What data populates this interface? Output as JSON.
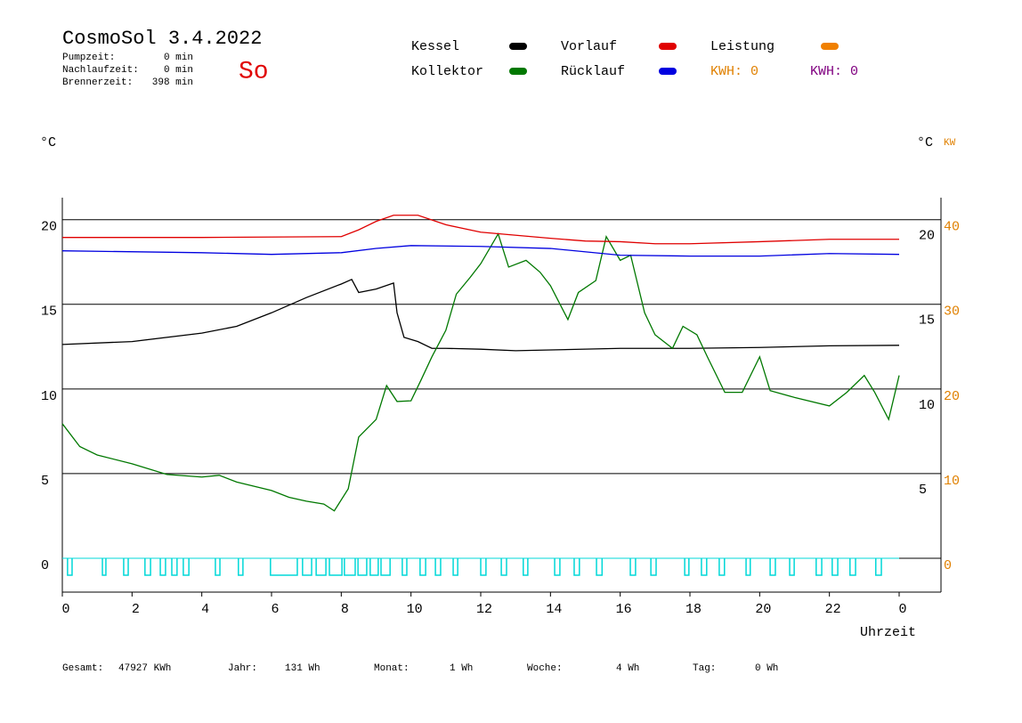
{
  "header": {
    "title": "CosmoSol 3.4.2022",
    "day": "So",
    "info": [
      [
        "Pumpzeit:",
        "0 min"
      ],
      [
        "Nachlaufzeit:",
        "0 min"
      ],
      [
        "Brennerzeit:",
        "398 min"
      ]
    ]
  },
  "chart_data": {
    "type": "line",
    "ylabel": "°C",
    "y2label": "°C",
    "y3label": "KW",
    "xlabel": "Uhrzeit",
    "xlim": [
      0,
      25.2
    ],
    "xticks": [
      0,
      2,
      4,
      6,
      8,
      10,
      12,
      14,
      16,
      18,
      20,
      22,
      {
        "value": 24,
        "label": "0"
      }
    ],
    "ylim": [
      -2,
      21.3
    ],
    "yticks": [
      0,
      5,
      10,
      15,
      20
    ],
    "y2lim": [
      -2,
      21.3
    ],
    "y2ticks": [
      5,
      10,
      15,
      20
    ],
    "y3lim": [
      -4,
      42.6
    ],
    "y3ticks": [
      0,
      10,
      20,
      30,
      40
    ],
    "y3color": "#e08000",
    "grid": true,
    "series": [
      {
        "name": "Kessel",
        "color": "#000000",
        "x": [
          0,
          2,
          4,
          5,
          6,
          7,
          8,
          8.3,
          8.5,
          9,
          9.5,
          9.6,
          9.8,
          10.2,
          10.6,
          11,
          12,
          13,
          16,
          18,
          20,
          22,
          24
        ],
        "values": [
          12.63,
          12.8,
          13.3,
          13.7,
          14.5,
          15.4,
          16.2,
          16.47,
          15.7,
          15.9,
          16.26,
          14.5,
          13.05,
          12.8,
          12.4,
          12.4,
          12.35,
          12.26,
          12.4,
          12.4,
          12.45,
          12.55,
          12.58
        ]
      },
      {
        "name": "Kollektor",
        "color": "#007800",
        "x": [
          0,
          0.5,
          1,
          2,
          3,
          4,
          4.5,
          5,
          6,
          6.5,
          7,
          7.5,
          7.8,
          8.2,
          8.5,
          9,
          9.3,
          9.6,
          10,
          10.3,
          10.6,
          11,
          11.3,
          11.7,
          12,
          12.5,
          12.8,
          13.3,
          13.7,
          14,
          14.5,
          14.8,
          15.3,
          15.6,
          16,
          16.3,
          16.7,
          17,
          17.5,
          17.8,
          18.2,
          18.5,
          19,
          19.5,
          20,
          20.3,
          21,
          22,
          22.5,
          23,
          23.3,
          23.7,
          24
        ],
        "values": [
          7.95,
          6.6,
          6.1,
          5.58,
          4.95,
          4.8,
          4.9,
          4.5,
          4.0,
          3.6,
          3.37,
          3.2,
          2.8,
          4.1,
          7.16,
          8.2,
          10.2,
          9.26,
          9.3,
          10.58,
          11.9,
          13.47,
          15.6,
          16.6,
          17.4,
          19.16,
          17.2,
          17.6,
          16.9,
          16.1,
          14.1,
          15.7,
          16.4,
          19.0,
          17.6,
          17.9,
          14.5,
          13.2,
          12.4,
          13.7,
          13.2,
          11.9,
          9.8,
          9.8,
          11.9,
          9.9,
          9.5,
          9.0,
          9.8,
          10.8,
          9.8,
          8.2,
          10.8
        ]
      },
      {
        "name": "Vorlauf",
        "color": "#e00000",
        "x": [
          0,
          4,
          8,
          8.5,
          9,
          9.5,
          10.2,
          11,
          12,
          14,
          15,
          16,
          17,
          18,
          20,
          22,
          24
        ],
        "values": [
          18.95,
          18.95,
          19.0,
          19.4,
          19.9,
          20.26,
          20.26,
          19.7,
          19.26,
          18.9,
          18.74,
          18.7,
          18.58,
          18.58,
          18.7,
          18.84,
          18.84
        ]
      },
      {
        "name": "Rücklauf",
        "color": "#0000e0",
        "x": [
          0,
          4,
          6,
          8,
          9,
          10,
          12,
          14,
          16,
          18,
          20,
          22,
          24
        ],
        "values": [
          18.16,
          18.05,
          17.95,
          18.05,
          18.3,
          18.47,
          18.42,
          18.3,
          17.9,
          17.85,
          17.85,
          18.0,
          17.95
        ]
      },
      {
        "name": "Leistung",
        "color": "#f08000",
        "x": [],
        "values": []
      }
    ],
    "kwh": [
      {
        "text": "KWH: 0",
        "color": "#e08000"
      },
      {
        "text": "KWH: 0",
        "color": "#800080"
      }
    ],
    "pump": {
      "color": "#00d8d8",
      "pulses": [
        [
          0.15,
          0.28
        ],
        [
          1.15,
          1.25
        ],
        [
          1.76,
          1.89
        ],
        [
          2.37,
          2.53
        ],
        [
          2.81,
          2.96
        ],
        [
          3.14,
          3.29
        ],
        [
          3.47,
          3.63
        ],
        [
          4.39,
          4.52
        ],
        [
          5.05,
          5.18
        ],
        [
          5.97,
          6.74
        ],
        [
          6.89,
          7.15
        ],
        [
          7.28,
          7.56
        ],
        [
          7.66,
          8.02
        ],
        [
          8.09,
          8.4
        ],
        [
          8.48,
          8.73
        ],
        [
          8.83,
          9.06
        ],
        [
          9.14,
          9.4
        ],
        [
          9.75,
          9.88
        ],
        [
          10.26,
          10.42
        ],
        [
          10.7,
          10.85
        ],
        [
          11.21,
          11.34
        ],
        [
          12.0,
          12.15
        ],
        [
          12.59,
          12.74
        ],
        [
          13.22,
          13.35
        ],
        [
          14.12,
          14.27
        ],
        [
          14.68,
          14.83
        ],
        [
          15.32,
          15.48
        ],
        [
          16.29,
          16.44
        ],
        [
          16.88,
          17.03
        ],
        [
          17.85,
          17.97
        ],
        [
          18.33,
          18.48
        ],
        [
          18.84,
          18.99
        ],
        [
          19.61,
          19.73
        ],
        [
          20.3,
          20.45
        ],
        [
          20.86,
          20.99
        ],
        [
          21.62,
          21.78
        ],
        [
          22.08,
          22.24
        ],
        [
          22.59,
          22.75
        ],
        [
          23.33,
          23.49
        ]
      ]
    }
  },
  "footer": [
    [
      "Gesamt:",
      "47927 KWh"
    ],
    [
      "Jahr:",
      "131 Wh"
    ],
    [
      "Monat:",
      "1 Wh"
    ],
    [
      "Woche:",
      "4 Wh"
    ],
    [
      "Tag:",
      "0 Wh"
    ]
  ]
}
